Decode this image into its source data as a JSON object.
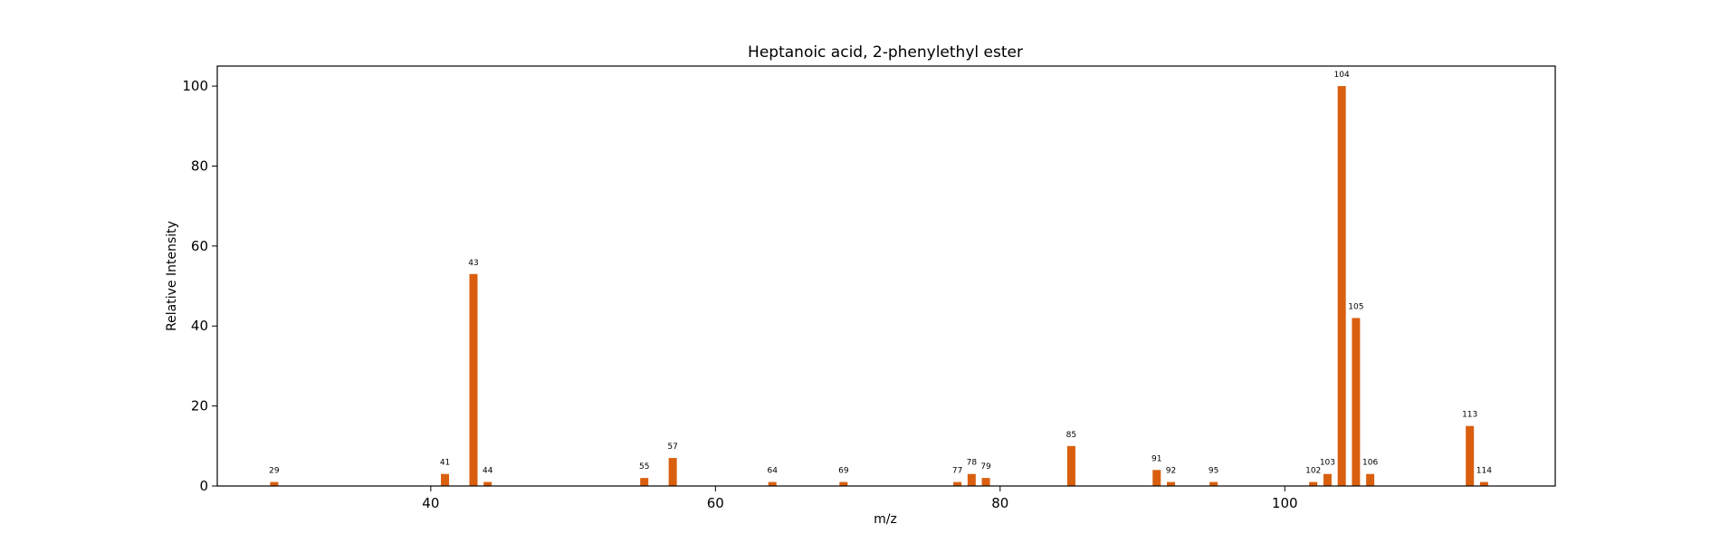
{
  "chart_data": {
    "type": "bar",
    "title": "Heptanoic acid, 2-phenylethyl ester",
    "xlabel": "m/z",
    "ylabel": "Relative Intensity",
    "xlim": [
      25,
      119
    ],
    "ylim": [
      0,
      105
    ],
    "xticks": [
      40,
      60,
      80,
      100
    ],
    "yticks": [
      0,
      20,
      40,
      60,
      80,
      100
    ],
    "grid": false,
    "bar_color": "#d95f0e",
    "peaks": [
      {
        "mz": 29,
        "intensity": 1,
        "label": "29"
      },
      {
        "mz": 41,
        "intensity": 3,
        "label": "41"
      },
      {
        "mz": 43,
        "intensity": 53,
        "label": "43"
      },
      {
        "mz": 44,
        "intensity": 1,
        "label": "44"
      },
      {
        "mz": 55,
        "intensity": 2,
        "label": "55"
      },
      {
        "mz": 57,
        "intensity": 7,
        "label": "57"
      },
      {
        "mz": 64,
        "intensity": 1,
        "label": "64"
      },
      {
        "mz": 69,
        "intensity": 1,
        "label": "69"
      },
      {
        "mz": 77,
        "intensity": 1,
        "label": "77"
      },
      {
        "mz": 78,
        "intensity": 3,
        "label": "78"
      },
      {
        "mz": 79,
        "intensity": 2,
        "label": "79"
      },
      {
        "mz": 85,
        "intensity": 10,
        "label": "85"
      },
      {
        "mz": 91,
        "intensity": 4,
        "label": "91"
      },
      {
        "mz": 92,
        "intensity": 1,
        "label": "92"
      },
      {
        "mz": 95,
        "intensity": 1,
        "label": "95"
      },
      {
        "mz": 102,
        "intensity": 1,
        "label": "102"
      },
      {
        "mz": 103,
        "intensity": 3,
        "label": "103"
      },
      {
        "mz": 104,
        "intensity": 100,
        "label": "104"
      },
      {
        "mz": 105,
        "intensity": 42,
        "label": "105"
      },
      {
        "mz": 106,
        "intensity": 3,
        "label": "106"
      },
      {
        "mz": 113,
        "intensity": 15,
        "label": "113"
      },
      {
        "mz": 114,
        "intensity": 1,
        "label": "114"
      }
    ]
  }
}
